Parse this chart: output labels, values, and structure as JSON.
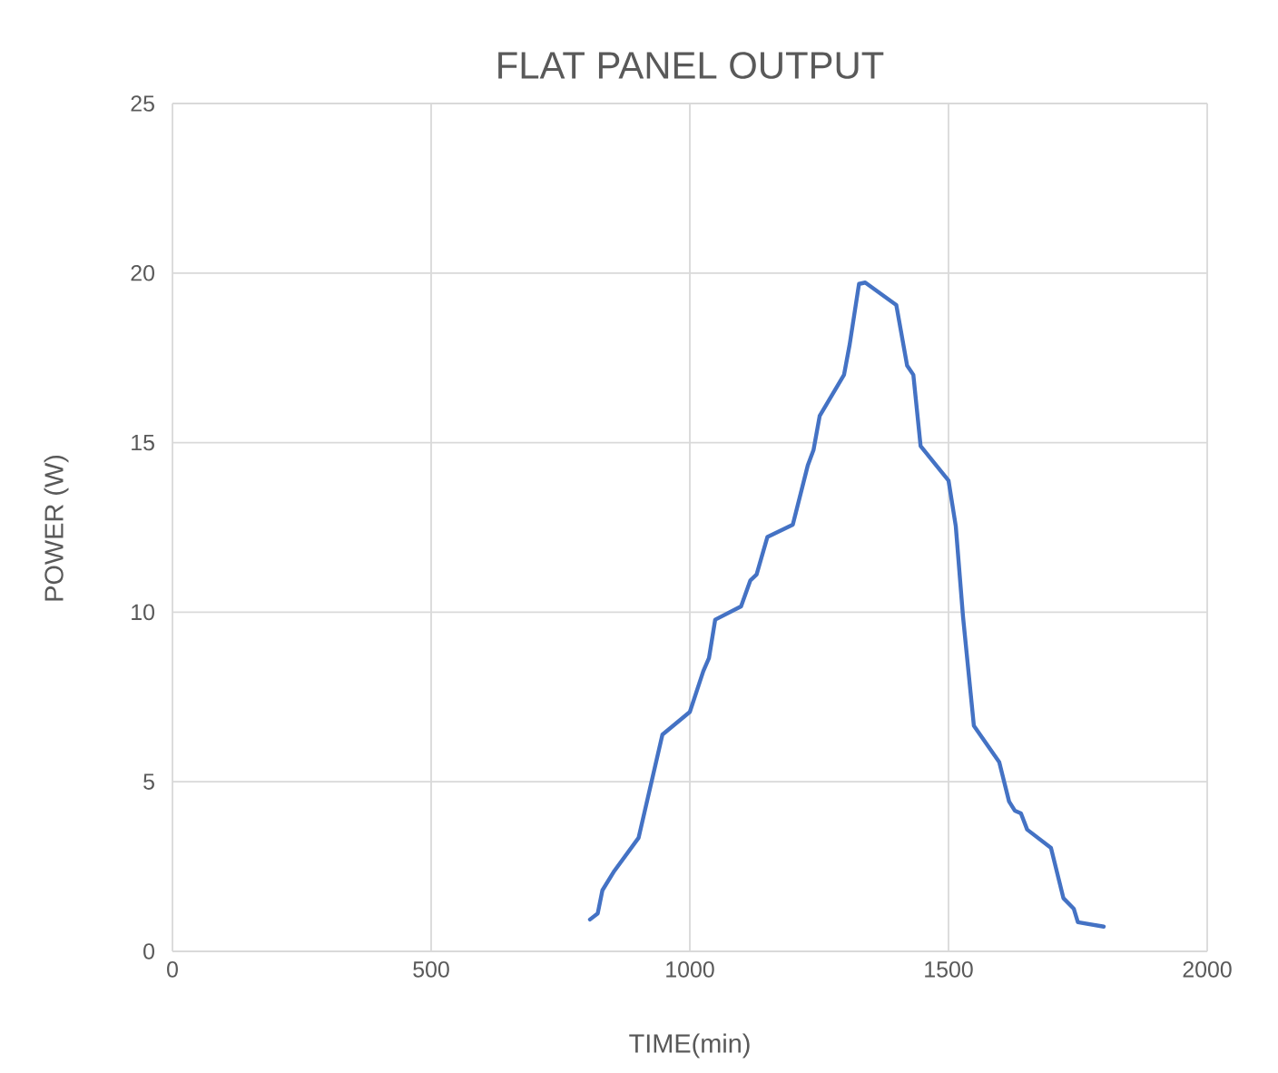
{
  "chart_data": {
    "type": "line",
    "title": "FLAT PANEL OUTPUT",
    "xlabel": "TIME(min)",
    "ylabel": "POWER (W)",
    "xlim": [
      0,
      2000
    ],
    "xticks": [
      0,
      500,
      1000,
      1500,
      2000
    ],
    "ylim": [
      0,
      25
    ],
    "yticks": [
      0,
      5,
      10,
      15,
      20,
      25
    ],
    "grid": true,
    "legend": false,
    "marker": "none",
    "line_style": "solid",
    "series": [
      {
        "color": "#4472c4",
        "x": [
          807,
          822,
          831,
          854,
          901,
          924,
          947,
          1000,
          1026,
          1037,
          1049,
          1099,
          1117,
          1129,
          1150,
          1199,
          1228,
          1239,
          1251,
          1298,
          1309,
          1327,
          1339,
          1399,
          1420,
          1432,
          1446,
          1500,
          1514,
          1528,
          1549,
          1598,
          1617,
          1628,
          1640,
          1652,
          1698,
          1722,
          1742,
          1750,
          1800
        ],
        "values": [
          0.94,
          1.12,
          1.8,
          2.37,
          3.35,
          4.87,
          6.39,
          7.06,
          8.26,
          8.65,
          9.78,
          10.17,
          10.94,
          11.11,
          12.22,
          12.58,
          14.33,
          14.78,
          15.79,
          17.0,
          17.9,
          19.68,
          19.72,
          19.06,
          17.27,
          17.0,
          14.9,
          13.88,
          12.54,
          9.87,
          6.65,
          5.58,
          4.42,
          4.15,
          4.07,
          3.59,
          3.05,
          1.57,
          1.26,
          0.86,
          0.73
        ]
      }
    ]
  }
}
